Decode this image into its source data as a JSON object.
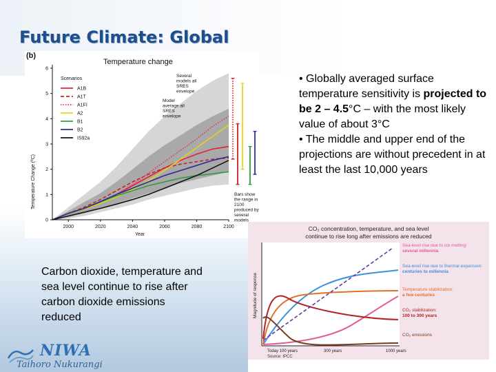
{
  "slide": {
    "title": "Future Climate: Global",
    "bullets": [
      {
        "prefix": "• Globally averaged surface temperature sensitivity is ",
        "bold": "projected to be 2 – 4.5",
        "suffix": "°C – with the most likely value of about 3°C"
      },
      {
        "prefix": "• The middle and upper end of the projections are without precedent in at least the last 10,000 years",
        "bold": "",
        "suffix": ""
      }
    ],
    "caption": "Carbon dioxide, temperature and sea level continue to rise after carbon dioxide emissions reduced",
    "logo": {
      "name": "NIWA",
      "subtitle": "Taihoro Nukurangi"
    }
  },
  "chart_data": [
    {
      "type": "line",
      "panel_label": "(b)",
      "title": "Temperature change",
      "xlabel": "Year",
      "ylabel": "Temperature Change (ºC)",
      "xlim": [
        1990,
        2100
      ],
      "ylim": [
        0,
        6
      ],
      "xticks": [
        2000,
        2020,
        2040,
        2060,
        2080,
        2100
      ],
      "yticks": [
        0,
        1,
        2,
        3,
        4,
        5,
        6
      ],
      "legend_title": "Scenarios",
      "annotations": {
        "outer_envelope": "Several models all SRES envelope",
        "inner_envelope": "Model average all SRES envelope",
        "bars_note": "Bars show the range in 2100 produced by several models"
      },
      "x": [
        1990,
        2000,
        2010,
        2020,
        2030,
        2040,
        2050,
        2060,
        2070,
        2080,
        2090,
        2100
      ],
      "series": [
        {
          "name": "A1B",
          "color": "#e8202a",
          "dash": "solid",
          "values": [
            0.0,
            0.25,
            0.45,
            0.7,
            1.0,
            1.35,
            1.7,
            2.05,
            2.35,
            2.6,
            2.8,
            2.9
          ]
        },
        {
          "name": "A1T",
          "color": "#c8202a",
          "dash": "dashed",
          "values": [
            0.0,
            0.25,
            0.5,
            0.8,
            1.15,
            1.5,
            1.8,
            2.05,
            2.2,
            2.3,
            2.4,
            2.45
          ]
        },
        {
          "name": "A1FI",
          "color": "#d63a5c",
          "dash": "dotted",
          "values": [
            0.0,
            0.25,
            0.45,
            0.7,
            1.0,
            1.4,
            1.85,
            2.3,
            2.75,
            3.2,
            3.7,
            4.1
          ]
        },
        {
          "name": "A2",
          "color": "#e8d21e",
          "dash": "solid",
          "values": [
            0.0,
            0.25,
            0.42,
            0.65,
            0.9,
            1.2,
            1.55,
            1.95,
            2.4,
            2.85,
            3.3,
            3.75
          ]
        },
        {
          "name": "B1",
          "color": "#2e9c3c",
          "dash": "solid",
          "values": [
            0.0,
            0.25,
            0.45,
            0.7,
            0.95,
            1.15,
            1.35,
            1.5,
            1.65,
            1.75,
            1.82,
            1.9
          ]
        },
        {
          "name": "B2",
          "color": "#2b2f8f",
          "dash": "solid",
          "values": [
            0.0,
            0.25,
            0.45,
            0.72,
            1.0,
            1.25,
            1.5,
            1.75,
            1.95,
            2.15,
            2.35,
            2.5
          ]
        },
        {
          "name": "IS92a",
          "color": "#111111",
          "dash": "solid",
          "values": [
            0.0,
            0.15,
            0.3,
            0.45,
            0.62,
            0.8,
            1.0,
            1.25,
            1.5,
            1.75,
            2.05,
            2.35
          ]
        }
      ],
      "envelopes": {
        "outer": {
          "low": [
            0.0,
            0.05,
            0.15,
            0.3,
            0.45,
            0.6,
            0.8,
            0.95,
            1.1,
            1.25,
            1.35,
            1.4
          ],
          "high": [
            0.0,
            0.5,
            1.0,
            1.5,
            2.1,
            2.8,
            3.5,
            4.1,
            4.6,
            5.1,
            5.5,
            5.8
          ]
        },
        "inner": {
          "low": [
            0.0,
            0.1,
            0.25,
            0.45,
            0.65,
            0.85,
            1.05,
            1.25,
            1.45,
            1.6,
            1.75,
            1.9
          ],
          "high": [
            0.0,
            0.35,
            0.7,
            1.05,
            1.5,
            2.0,
            2.5,
            2.95,
            3.35,
            3.75,
            4.1,
            4.4
          ]
        }
      },
      "range_bars": [
        {
          "name": "A1FI",
          "color": "#e8202a",
          "dash": "dotted",
          "low": 2.4,
          "high": 5.6
        },
        {
          "name": "A1T",
          "color": "#c8202a",
          "dash": "solid",
          "low": 1.4,
          "high": 3.8
        },
        {
          "name": "A2",
          "color": "#e8d21e",
          "dash": "solid",
          "low": 2.0,
          "high": 5.4
        },
        {
          "name": "B1",
          "color": "#2e9c3c",
          "dash": "solid",
          "low": 1.4,
          "high": 2.9
        },
        {
          "name": "B2",
          "color": "#2b2f8f",
          "dash": "solid",
          "low": 1.8,
          "high": 3.5
        }
      ]
    },
    {
      "type": "line",
      "title": "CO₂ concentration, temperature, and sea level continue to rise long after emissions are reduced",
      "ylabel": "Magnitude of response",
      "xtick_labels": [
        "Today 100 years",
        "300 years",
        "1000 years"
      ],
      "source": "Source: IPCC",
      "y_qualitative": true,
      "series": [
        {
          "name": "Sea-level rise due to ice melting:",
          "detail": "several millennia",
          "color": "#e35a9a"
        },
        {
          "name": "Sea-level rise due to thermal expansion:",
          "detail": "centuries to millennia",
          "color": "#3a8ede"
        },
        {
          "name": "Temperature stabilization:",
          "detail": "a few centuries",
          "color": "#e0702a"
        },
        {
          "name": "CO₂ stabilization:",
          "detail": "100 to 300 years",
          "color": "#b22222"
        },
        {
          "name": "CO₂ emissions",
          "detail": "",
          "color": "#7a3a1a"
        }
      ]
    }
  ]
}
